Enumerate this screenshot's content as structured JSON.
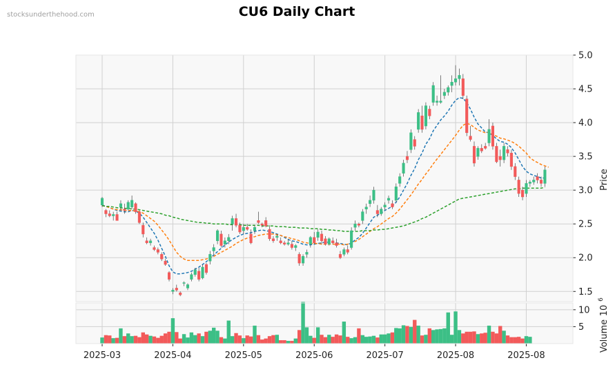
{
  "watermark": "stocksunderthehood.com",
  "chart_data": {
    "type": "candlestick",
    "title": "CU6 Daily Chart",
    "ylabel": "Price",
    "volume_label": "Volume",
    "volume_exponent_label": "10",
    "volume_exponent": "6",
    "price_ylim": [
      1.35,
      5.0
    ],
    "price_ticks": [
      "1.5",
      "2.0",
      "2.5",
      "3.0",
      "3.5",
      "4.0",
      "4.5",
      "5.0"
    ],
    "volume_ylim": [
      0,
      12
    ],
    "volume_ticks": [
      "5",
      "10"
    ],
    "x_tick_labels": [
      "2025-03",
      "2025-04",
      "2025-05",
      "2025-06",
      "2025-07",
      "2025-08",
      "2025-08"
    ],
    "moving_average_colors": [
      "#1f77b4",
      "#ff7f0e",
      "#2ca02c"
    ],
    "up_color": "#3cbf86",
    "down_color": "#f25a5a",
    "ohlc": [
      [
        2.78,
        2.9,
        2.75,
        2.88
      ],
      [
        2.7,
        2.72,
        2.6,
        2.65
      ],
      [
        2.65,
        2.7,
        2.6,
        2.62
      ],
      [
        2.62,
        2.68,
        2.55,
        2.64
      ],
      [
        2.64,
        2.68,
        2.55,
        2.55
      ],
      [
        2.75,
        2.85,
        2.7,
        2.8
      ],
      [
        2.72,
        2.8,
        2.65,
        2.7
      ],
      [
        2.72,
        2.85,
        2.7,
        2.82
      ],
      [
        2.75,
        2.92,
        2.72,
        2.85
      ],
      [
        2.8,
        2.82,
        2.65,
        2.68
      ],
      [
        2.68,
        2.7,
        2.5,
        2.52
      ],
      [
        2.48,
        2.52,
        2.3,
        2.35
      ],
      [
        2.25,
        2.3,
        2.2,
        2.22
      ],
      [
        2.22,
        2.28,
        2.18,
        2.25
      ],
      [
        2.15,
        2.18,
        2.1,
        2.12
      ],
      [
        2.12,
        2.15,
        2.05,
        2.08
      ],
      [
        2.05,
        2.08,
        1.95,
        1.98
      ],
      [
        1.95,
        1.98,
        1.88,
        1.9
      ],
      [
        1.78,
        1.8,
        1.65,
        1.68
      ],
      [
        1.5,
        1.55,
        1.46,
        1.52
      ],
      [
        1.55,
        1.6,
        1.5,
        1.52
      ],
      [
        1.48,
        1.5,
        1.43,
        1.45
      ],
      [
        1.62,
        1.65,
        1.58,
        1.63
      ],
      [
        1.55,
        1.62,
        1.52,
        1.6
      ],
      [
        1.68,
        1.78,
        1.65,
        1.75
      ],
      [
        1.75,
        1.85,
        1.72,
        1.82
      ],
      [
        1.8,
        1.85,
        1.65,
        1.68
      ],
      [
        1.7,
        1.9,
        1.68,
        1.86
      ],
      [
        1.9,
        1.92,
        1.75,
        1.78
      ],
      [
        1.95,
        2.1,
        1.9,
        2.05
      ],
      [
        2.1,
        2.2,
        2.05,
        2.15
      ],
      [
        2.25,
        2.42,
        2.2,
        2.4
      ],
      [
        2.35,
        2.4,
        2.15,
        2.18
      ],
      [
        2.2,
        2.3,
        2.15,
        2.25
      ],
      [
        2.25,
        2.35,
        2.2,
        2.3
      ],
      [
        2.5,
        2.62,
        2.4,
        2.58
      ],
      [
        2.58,
        2.65,
        2.45,
        2.48
      ],
      [
        2.48,
        2.52,
        2.35,
        2.38
      ],
      [
        2.4,
        2.5,
        2.35,
        2.45
      ],
      [
        2.45,
        2.5,
        2.4,
        2.42
      ],
      [
        2.35,
        2.42,
        2.2,
        2.22
      ],
      [
        2.4,
        2.48,
        2.35,
        2.45
      ],
      [
        2.55,
        2.68,
        2.5,
        2.52
      ],
      [
        2.5,
        2.52,
        2.45,
        2.48
      ],
      [
        2.55,
        2.6,
        2.45,
        2.47
      ],
      [
        2.42,
        2.48,
        2.25,
        2.28
      ],
      [
        2.28,
        2.32,
        2.22,
        2.25
      ],
      [
        2.3,
        2.35,
        2.25,
        2.32
      ],
      [
        2.25,
        2.3,
        2.2,
        2.22
      ],
      [
        2.22,
        2.25,
        2.18,
        2.2
      ],
      [
        2.2,
        2.28,
        2.18,
        2.22
      ],
      [
        2.2,
        2.25,
        2.12,
        2.15
      ],
      [
        2.15,
        2.2,
        2.1,
        2.18
      ],
      [
        2.05,
        2.08,
        1.88,
        1.92
      ],
      [
        1.92,
        2.05,
        1.88,
        2.02
      ],
      [
        2.05,
        2.12,
        2.0,
        2.08
      ],
      [
        2.2,
        2.32,
        2.15,
        2.3
      ],
      [
        2.3,
        2.38,
        2.2,
        2.22
      ],
      [
        2.3,
        2.42,
        2.25,
        2.38
      ],
      [
        2.35,
        2.4,
        2.2,
        2.25
      ],
      [
        2.28,
        2.32,
        2.18,
        2.2
      ],
      [
        2.2,
        2.3,
        2.18,
        2.28
      ],
      [
        2.25,
        2.3,
        2.2,
        2.22
      ],
      [
        2.22,
        2.28,
        2.15,
        2.18
      ],
      [
        2.05,
        2.1,
        1.98,
        2.0
      ],
      [
        2.05,
        2.15,
        2.02,
        2.12
      ],
      [
        2.12,
        2.18,
        2.05,
        2.08
      ],
      [
        2.15,
        2.45,
        2.12,
        2.4
      ],
      [
        2.45,
        2.55,
        2.4,
        2.5
      ],
      [
        2.5,
        2.52,
        2.45,
        2.48
      ],
      [
        2.55,
        2.72,
        2.5,
        2.68
      ],
      [
        2.72,
        2.8,
        2.65,
        2.75
      ],
      [
        2.8,
        2.92,
        2.75,
        2.85
      ],
      [
        2.85,
        3.05,
        2.8,
        3.0
      ],
      [
        2.7,
        2.78,
        2.6,
        2.65
      ],
      [
        2.65,
        2.75,
        2.62,
        2.72
      ],
      [
        2.75,
        2.82,
        2.7,
        2.78
      ],
      [
        2.85,
        2.92,
        2.8,
        2.88
      ],
      [
        2.8,
        2.85,
        2.72,
        2.75
      ],
      [
        2.85,
        3.1,
        2.82,
        3.05
      ],
      [
        3.1,
        3.25,
        3.05,
        3.2
      ],
      [
        3.25,
        3.45,
        3.2,
        3.4
      ],
      [
        3.5,
        3.58,
        3.4,
        3.45
      ],
      [
        3.6,
        3.9,
        3.55,
        3.85
      ],
      [
        3.75,
        3.8,
        3.6,
        3.65
      ],
      [
        3.9,
        4.2,
        3.85,
        4.15
      ],
      [
        4.1,
        4.25,
        3.85,
        3.9
      ],
      [
        3.95,
        4.3,
        3.9,
        4.25
      ],
      [
        4.2,
        4.25,
        4.05,
        4.1
      ],
      [
        4.3,
        4.6,
        4.25,
        4.55
      ],
      [
        4.3,
        4.4,
        4.25,
        4.32
      ],
      [
        4.3,
        4.7,
        4.28,
        4.32
      ],
      [
        4.4,
        4.5,
        4.35,
        4.45
      ],
      [
        4.45,
        4.55,
        4.4,
        4.52
      ],
      [
        4.55,
        4.7,
        4.45,
        4.6
      ],
      [
        4.6,
        4.85,
        4.55,
        4.65
      ],
      [
        4.65,
        4.8,
        4.55,
        4.7
      ],
      [
        4.65,
        4.72,
        4.35,
        4.4
      ],
      [
        4.35,
        4.4,
        3.8,
        3.85
      ],
      [
        3.8,
        3.95,
        3.72,
        3.75
      ],
      [
        3.65,
        3.72,
        3.35,
        3.4
      ],
      [
        3.5,
        3.65,
        3.45,
        3.62
      ],
      [
        3.62,
        3.68,
        3.55,
        3.58
      ],
      [
        3.65,
        3.7,
        3.6,
        3.62
      ],
      [
        3.7,
        4.05,
        3.65,
        3.9
      ],
      [
        3.95,
        4.0,
        3.6,
        3.65
      ],
      [
        3.65,
        3.7,
        3.4,
        3.42
      ],
      [
        3.5,
        3.6,
        3.35,
        3.45
      ],
      [
        3.45,
        3.7,
        3.4,
        3.65
      ],
      [
        3.6,
        3.65,
        3.5,
        3.55
      ],
      [
        3.55,
        3.6,
        3.3,
        3.35
      ],
      [
        3.35,
        3.4,
        3.15,
        3.2
      ],
      [
        3.15,
        3.2,
        2.9,
        2.95
      ],
      [
        3.0,
        3.05,
        2.85,
        2.9
      ],
      [
        2.95,
        3.15,
        2.9,
        3.1
      ],
      [
        3.1,
        3.15,
        3.05,
        3.12
      ],
      [
        3.12,
        3.2,
        3.08,
        3.15
      ],
      [
        3.2,
        3.25,
        3.1,
        3.15
      ],
      [
        3.15,
        3.2,
        3.05,
        3.1
      ],
      [
        3.1,
        3.35,
        3.05,
        3.3
      ]
    ],
    "volume": [
      1.8,
      2.5,
      2.4,
      1.6,
      1.7,
      4.5,
      2.2,
      3.0,
      2.2,
      2.3,
      1.9,
      3.3,
      2.7,
      2.3,
      2.1,
      1.7,
      2.3,
      3.0,
      3.5,
      7.5,
      3.4,
      1.5,
      2.8,
      1.8,
      3.3,
      2.5,
      3.0,
      2.2,
      3.5,
      3.8,
      4.7,
      3.8,
      1.9,
      1.5,
      6.8,
      2.2,
      3.1,
      2.4,
      1.6,
      2.4,
      2.1,
      5.3,
      2.5,
      1.2,
      1.5,
      2.2,
      2.5,
      2.6,
      1.0,
      1.0,
      0.8,
      0.8,
      1.5,
      4.0,
      12.3,
      4.8,
      2.3,
      1.7,
      4.8,
      2.6,
      1.9,
      2.6,
      2.0,
      2.7,
      2.4,
      6.5,
      2.0,
      1.6,
      1.9,
      4.5,
      2.5,
      2.0,
      2.1,
      2.3,
      1.8,
      2.7,
      2.7,
      3.0,
      3.3,
      4.6,
      4.5,
      5.4,
      5.2,
      4.9,
      7.0,
      5.3,
      2.4,
      2.6,
      4.5,
      4.0,
      4.2,
      4.3,
      4.5,
      9.2,
      2.6,
      9.5,
      4.0,
      3.0,
      3.5,
      3.5,
      3.6,
      2.8,
      3.0,
      3.2,
      5.3,
      3.5,
      3.0,
      5.2,
      3.8,
      2.4,
      1.9,
      1.9,
      2.0,
      1.5,
      2.2,
      2.0
    ],
    "ma_short": [
      2.78,
      2.76,
      2.74,
      2.72,
      2.7,
      2.69,
      2.68,
      2.68,
      2.7,
      2.69,
      2.66,
      2.6,
      2.52,
      2.44,
      2.36,
      2.26,
      2.14,
      2.02,
      1.88,
      1.79,
      1.76,
      1.76,
      1.77,
      1.78,
      1.8,
      1.83,
      1.86,
      1.9,
      1.94,
      1.99,
      2.04,
      2.09,
      2.14,
      2.19,
      2.23,
      2.27,
      2.3,
      2.33,
      2.35,
      2.36,
      2.37,
      2.39,
      2.4,
      2.41,
      2.4,
      2.39,
      2.37,
      2.35,
      2.33,
      2.3,
      2.27,
      2.25,
      2.24,
      2.22,
      2.2,
      2.19,
      2.19,
      2.2,
      2.21,
      2.22,
      2.23,
      2.23,
      2.23,
      2.22,
      2.21,
      2.2,
      2.19,
      2.22,
      2.26,
      2.3,
      2.36,
      2.44,
      2.52,
      2.6,
      2.63,
      2.66,
      2.7,
      2.73,
      2.76,
      2.82,
      2.9,
      3.0,
      3.1,
      3.22,
      3.32,
      3.45,
      3.55,
      3.68,
      3.76,
      3.88,
      3.96,
      4.04,
      4.1,
      4.17,
      4.26,
      4.33,
      4.37,
      4.36,
      4.3,
      4.2,
      4.08,
      3.98,
      3.92,
      3.86,
      3.85,
      3.81,
      3.76,
      3.72,
      3.71,
      3.68,
      3.63,
      3.55,
      3.45,
      3.35,
      3.28,
      3.24,
      3.22,
      3.2,
      3.18,
      3.18
    ],
    "ma_mid": [
      2.77,
      2.76,
      2.74,
      2.72,
      2.71,
      2.71,
      2.7,
      2.7,
      2.7,
      2.69,
      2.68,
      2.66,
      2.62,
      2.58,
      2.54,
      2.48,
      2.41,
      2.34,
      2.26,
      2.17,
      2.08,
      2.02,
      1.98,
      1.96,
      1.96,
      1.96,
      1.96,
      1.97,
      1.98,
      2.0,
      2.02,
      2.05,
      2.08,
      2.11,
      2.14,
      2.17,
      2.21,
      2.24,
      2.27,
      2.29,
      2.3,
      2.31,
      2.33,
      2.34,
      2.35,
      2.35,
      2.35,
      2.34,
      2.33,
      2.31,
      2.3,
      2.28,
      2.27,
      2.25,
      2.23,
      2.22,
      2.21,
      2.21,
      2.21,
      2.2,
      2.2,
      2.2,
      2.2,
      2.2,
      2.2,
      2.19,
      2.2,
      2.22,
      2.24,
      2.27,
      2.31,
      2.35,
      2.39,
      2.43,
      2.46,
      2.5,
      2.54,
      2.58,
      2.61,
      2.66,
      2.72,
      2.79,
      2.86,
      2.93,
      3.01,
      3.09,
      3.16,
      3.24,
      3.31,
      3.39,
      3.46,
      3.53,
      3.6,
      3.67,
      3.74,
      3.81,
      3.89,
      3.96,
      3.99,
      3.97,
      3.93,
      3.89,
      3.87,
      3.85,
      3.86,
      3.82,
      3.8,
      3.77,
      3.76,
      3.74,
      3.72,
      3.69,
      3.65,
      3.6,
      3.55,
      3.48,
      3.44,
      3.41,
      3.38,
      3.36,
      3.34
    ],
    "ma_long": [
      2.77,
      2.76,
      2.76,
      2.75,
      2.74,
      2.74,
      2.73,
      2.73,
      2.72,
      2.72,
      2.71,
      2.7,
      2.69,
      2.68,
      2.67,
      2.66,
      2.65,
      2.63,
      2.62,
      2.6,
      2.59,
      2.57,
      2.56,
      2.55,
      2.54,
      2.53,
      2.52,
      2.52,
      2.51,
      2.51,
      2.5,
      2.5,
      2.5,
      2.5,
      2.49,
      2.49,
      2.49,
      2.49,
      2.48,
      2.48,
      2.48,
      2.48,
      2.48,
      2.47,
      2.47,
      2.47,
      2.47,
      2.46,
      2.46,
      2.46,
      2.45,
      2.45,
      2.45,
      2.44,
      2.44,
      2.44,
      2.43,
      2.43,
      2.43,
      2.42,
      2.42,
      2.41,
      2.41,
      2.4,
      2.4,
      2.39,
      2.39,
      2.39,
      2.39,
      2.39,
      2.4,
      2.4,
      2.4,
      2.41,
      2.41,
      2.42,
      2.42,
      2.43,
      2.44,
      2.45,
      2.46,
      2.47,
      2.49,
      2.51,
      2.53,
      2.55,
      2.58,
      2.6,
      2.63,
      2.66,
      2.69,
      2.72,
      2.75,
      2.78,
      2.81,
      2.84,
      2.87,
      2.88,
      2.89,
      2.9,
      2.91,
      2.92,
      2.93,
      2.94,
      2.95,
      2.96,
      2.97,
      2.98,
      2.99,
      3.0,
      3.01,
      3.02,
      3.02,
      3.03,
      3.03,
      3.03,
      3.03,
      3.03,
      3.03,
      3.04
    ]
  }
}
